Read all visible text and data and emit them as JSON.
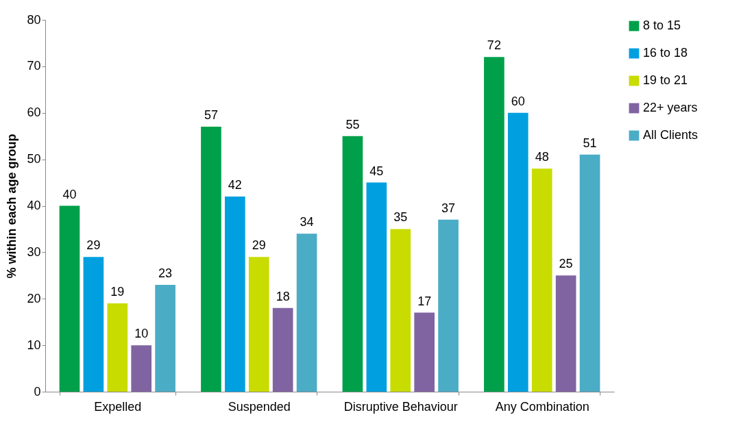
{
  "chart_data": {
    "type": "bar",
    "ylabel": "% within each age group",
    "categories": [
      "Expelled",
      "Suspended",
      "Disruptive Behaviour",
      "Any Combination"
    ],
    "series": [
      {
        "name": "8 to 15",
        "color": "#00a04a",
        "values": [
          40,
          57,
          55,
          72
        ]
      },
      {
        "name": "16 to 18",
        "color": "#00a0e0",
        "values": [
          29,
          42,
          45,
          60
        ]
      },
      {
        "name": "19 to 21",
        "color": "#c8dc00",
        "values": [
          19,
          29,
          35,
          48
        ]
      },
      {
        "name": "22+ years",
        "color": "#8064a2",
        "values": [
          10,
          18,
          17,
          25
        ]
      },
      {
        "name": "All Clients",
        "color": "#4bacc6",
        "values": [
          23,
          34,
          37,
          51
        ]
      }
    ],
    "ylim": [
      0,
      80
    ],
    "yticks": [
      0,
      10,
      20,
      30,
      40,
      50,
      60,
      70,
      80
    ],
    "grid": false,
    "legend": "right",
    "data_labels": true
  }
}
